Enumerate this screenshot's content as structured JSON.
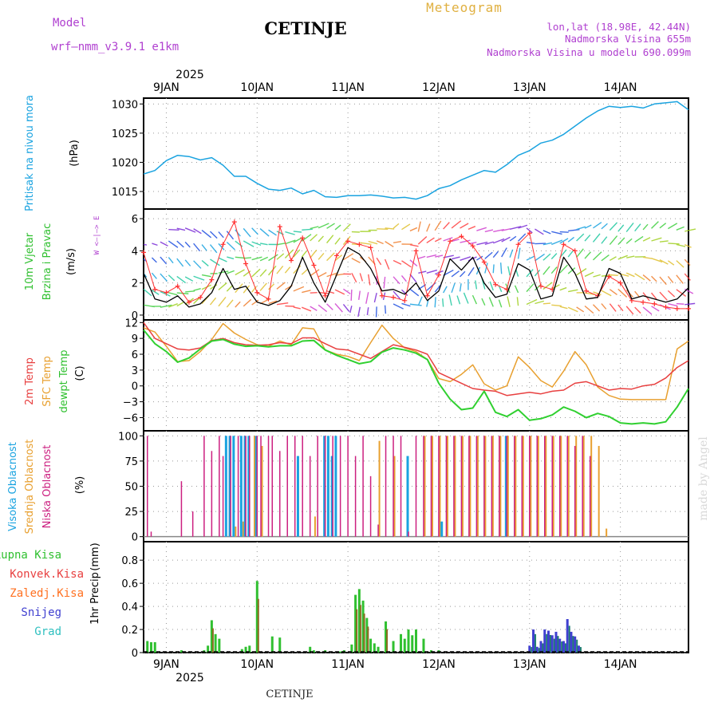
{
  "header": {
    "model_label": "Model",
    "model_name": "wrf—nmm_v3.9.1  e1km",
    "station_title": "CETINJE",
    "meteogram_label": "Meteogram",
    "lonlat": "lon,lat (18.98E, 42.44N)",
    "elevation": "Nadmorska Visina 655m",
    "model_elevation": "Nadmorska Visina u modelu 690.099m",
    "watermark": "made by Angel",
    "footer_station": "CETINJE"
  },
  "colors": {
    "pressure": "#1aa3e0",
    "wind_speed": "#000000",
    "gust": "#ff3030",
    "temp_2m": "#e84040",
    "temp_sfc": "#e8a030",
    "dewpoint": "#30d030",
    "cloud_high": "#1aa3e0",
    "cloud_mid": "#e8a030",
    "cloud_low": "#cc2080",
    "precip_total": "#30c030",
    "precip_conv": "#e84040",
    "precip_frozen": "#ff7020",
    "snow": "#4040d0",
    "hail": "#30c0c0",
    "purple_text": "#b040d0",
    "orange_text": "#e0b040"
  },
  "chart_data": [
    {
      "type": "line",
      "panel": "pressure",
      "title": "",
      "ylabel": "Pritisak na nivou mora",
      "unit": "(hPa)",
      "ylim": [
        1012,
        1031
      ],
      "yticks": [
        1015,
        1020,
        1025,
        1030
      ],
      "grid": true,
      "x_days": [
        "9JAN",
        "10JAN",
        "11JAN",
        "12JAN",
        "13JAN",
        "14JAN"
      ],
      "x_year": "2025",
      "xlim_hours": [
        -6,
        138
      ],
      "series": [
        {
          "name": "Pritisak na nivou mora",
          "x": [
            -6,
            -3,
            0,
            3,
            6,
            9,
            12,
            15,
            18,
            21,
            24,
            27,
            30,
            33,
            36,
            39,
            42,
            45,
            48,
            51,
            54,
            57,
            60,
            63,
            66,
            69,
            72,
            75,
            78,
            81,
            84,
            87,
            90,
            93,
            96,
            99,
            102,
            105,
            108,
            111,
            114,
            117,
            120,
            123,
            126,
            129,
            132,
            135,
            138
          ],
          "values": [
            1018,
            1018.6,
            1020.3,
            1021.2,
            1021.0,
            1020.4,
            1020.8,
            1019.5,
            1017.6,
            1017.6,
            1016.4,
            1015.4,
            1015.2,
            1015.6,
            1014.6,
            1015.2,
            1014.1,
            1014.0,
            1014.3,
            1014.3,
            1014.4,
            1014.2,
            1013.9,
            1014.0,
            1013.7,
            1014.3,
            1015.5,
            1016.0,
            1017.0,
            1017.8,
            1018.6,
            1018.3,
            1019.6,
            1021.2,
            1022.0,
            1023.3,
            1023.8,
            1024.8,
            1026.2,
            1027.6,
            1028.8,
            1029.6,
            1029.4,
            1029.6,
            1029.3,
            1030.0,
            1030.2,
            1030.4,
            1029.0
          ]
        }
      ]
    },
    {
      "type": "line",
      "panel": "wind",
      "ylabel": "10m Vjetar",
      "ylabel2": "Brzina i Pravac",
      "unit": "(m/s)",
      "compass": "W <—|—> E",
      "ylim": [
        -0.3,
        6.6
      ],
      "yticks": [
        0,
        2,
        4,
        6
      ],
      "grid": true,
      "series": [
        {
          "name": "speed",
          "x": [
            -6,
            -3,
            0,
            3,
            6,
            9,
            12,
            15,
            18,
            21,
            24,
            27,
            30,
            33,
            36,
            39,
            42,
            45,
            48,
            51,
            54,
            57,
            60,
            63,
            66,
            69,
            72,
            75,
            78,
            81,
            84,
            87,
            90,
            93,
            96,
            99,
            102,
            105,
            108,
            111,
            114,
            117,
            120,
            123,
            126,
            129,
            132,
            135,
            138
          ],
          "values": [
            2.6,
            1.0,
            0.8,
            1.2,
            0.5,
            0.7,
            1.4,
            2.9,
            1.6,
            1.8,
            0.8,
            0.6,
            0.9,
            1.8,
            3.6,
            2.0,
            0.8,
            2.5,
            4.2,
            3.8,
            2.9,
            1.5,
            1.6,
            1.3,
            2.0,
            0.9,
            1.5,
            3.5,
            2.8,
            3.6,
            2.0,
            1.1,
            1.3,
            3.2,
            2.8,
            1.0,
            1.2,
            3.6,
            2.6,
            1.0,
            1.1,
            2.9,
            2.6,
            1.0,
            1.2,
            1.0,
            0.8,
            1.0,
            1.7
          ]
        },
        {
          "name": "gust",
          "x": [
            -6,
            -3,
            0,
            3,
            6,
            9,
            12,
            15,
            18,
            21,
            24,
            27,
            30,
            33,
            36,
            39,
            42,
            45,
            48,
            51,
            54,
            57,
            60,
            63,
            66,
            69,
            72,
            75,
            78,
            81,
            84,
            87,
            90,
            93,
            96,
            99,
            102,
            105,
            108,
            111,
            114,
            117,
            120,
            123,
            126,
            129,
            132,
            135,
            138
          ],
          "values": [
            3.9,
            1.6,
            1.4,
            1.8,
            0.8,
            1.1,
            2.2,
            4.4,
            5.8,
            3.2,
            1.4,
            1.0,
            5.5,
            3.4,
            4.8,
            3.1,
            1.2,
            3.7,
            4.6,
            4.4,
            4.2,
            1.2,
            1.1,
            0.9,
            4.0,
            1.2,
            2.5,
            4.6,
            4.9,
            4.3,
            3.3,
            1.9,
            1.6,
            4.4,
            5.1,
            1.8,
            1.6,
            4.4,
            4.0,
            1.5,
            1.2,
            2.4,
            2.0,
            0.9,
            0.8,
            0.7,
            0.5,
            0.4,
            0.4
          ]
        }
      ]
    },
    {
      "type": "line",
      "panel": "temperature",
      "ylabel": "2m Temp",
      "ylabel2": "SFC Temp",
      "ylabel3": "dewpt Temp",
      "unit": "(C)",
      "ylim": [
        -8.5,
        12.5
      ],
      "yticks": [
        -6,
        -3,
        0,
        3,
        6,
        9,
        12
      ],
      "grid": true,
      "series": [
        {
          "name": "2m Temp",
          "x": [
            -6,
            -3,
            0,
            3,
            6,
            9,
            12,
            15,
            18,
            21,
            24,
            27,
            30,
            33,
            36,
            39,
            42,
            45,
            48,
            51,
            54,
            57,
            60,
            63,
            66,
            69,
            72,
            75,
            78,
            81,
            84,
            87,
            90,
            93,
            96,
            99,
            102,
            105,
            108,
            111,
            114,
            117,
            120,
            123,
            126,
            129,
            132,
            135,
            138
          ],
          "values": [
            12.0,
            9.0,
            8.0,
            7.0,
            6.8,
            7.2,
            8.6,
            9.0,
            8.2,
            7.8,
            7.7,
            7.8,
            8.2,
            8.0,
            9.1,
            9.1,
            8.0,
            7.0,
            6.8,
            6.0,
            5.2,
            6.5,
            7.8,
            7.3,
            6.8,
            6.0,
            2.5,
            1.5,
            0.5,
            -0.5,
            -0.8,
            -1.0,
            -1.8,
            -1.5,
            -1.2,
            -1.5,
            -1.0,
            -0.8,
            0.5,
            0.8,
            0.0,
            -0.8,
            -0.5,
            -0.6,
            0.0,
            0.3,
            1.5,
            3.5,
            4.8
          ]
        },
        {
          "name": "SFC Temp",
          "x": [
            -6,
            -3,
            0,
            3,
            6,
            9,
            12,
            15,
            18,
            21,
            24,
            27,
            30,
            33,
            36,
            39,
            42,
            45,
            48,
            51,
            54,
            57,
            60,
            63,
            66,
            69,
            72,
            75,
            78,
            81,
            84,
            87,
            90,
            93,
            96,
            99,
            102,
            105,
            108,
            111,
            114,
            117,
            120,
            123,
            126,
            129,
            132,
            135,
            138
          ],
          "values": [
            11.0,
            10.2,
            7.5,
            4.6,
            4.8,
            6.5,
            8.8,
            11.8,
            10.0,
            8.8,
            7.8,
            7.5,
            8.5,
            7.8,
            11.0,
            10.8,
            6.8,
            6.0,
            5.6,
            4.8,
            8.2,
            11.5,
            9.0,
            7.2,
            6.5,
            5.0,
            1.4,
            0.8,
            2.2,
            4.0,
            0.4,
            -0.8,
            0.0,
            5.5,
            3.5,
            1.0,
            -0.2,
            2.8,
            6.5,
            4.0,
            -0.2,
            -1.8,
            -2.5,
            -2.6,
            -2.6,
            -2.6,
            -2.6,
            7.0,
            8.5
          ]
        },
        {
          "name": "dewpt Temp",
          "x": [
            -6,
            -3,
            0,
            3,
            6,
            9,
            12,
            15,
            18,
            21,
            24,
            27,
            30,
            33,
            36,
            39,
            42,
            45,
            48,
            51,
            54,
            57,
            60,
            63,
            66,
            69,
            72,
            75,
            78,
            81,
            84,
            87,
            90,
            93,
            96,
            99,
            102,
            105,
            108,
            111,
            114,
            117,
            120,
            123,
            126,
            129,
            132,
            135,
            138
          ],
          "values": [
            10.6,
            8.0,
            6.5,
            4.5,
            5.3,
            7.0,
            8.5,
            8.8,
            7.9,
            7.5,
            7.6,
            7.4,
            7.6,
            7.6,
            8.5,
            8.6,
            6.8,
            5.8,
            5.0,
            4.2,
            4.6,
            6.4,
            7.2,
            6.8,
            6.2,
            5.0,
            0.5,
            -2.5,
            -4.5,
            -4.2,
            -1.0,
            -5.0,
            -5.8,
            -4.5,
            -6.5,
            -6.2,
            -5.5,
            -4.0,
            -4.8,
            -6.0,
            -5.2,
            -5.8,
            -7.0,
            -7.2,
            -7.0,
            -7.2,
            -6.8,
            -4.0,
            -0.5
          ]
        }
      ]
    },
    {
      "type": "bar",
      "panel": "clouds",
      "ylabel": "Visoka Oblacnost",
      "ylabel2": "Srednja Oblacnost",
      "ylabel3": "Niska Oblacnost",
      "unit": "(%)",
      "ylim": [
        -5,
        105
      ],
      "yticks": [
        0,
        25,
        50,
        75,
        100
      ],
      "grid": true,
      "series": [
        {
          "name": "Niska Oblacnost",
          "x": [
            -5,
            -4,
            4,
            7,
            10,
            12,
            14,
            15,
            17,
            19,
            21,
            22,
            24,
            25,
            27,
            28,
            30,
            32,
            34,
            36,
            38,
            40,
            42,
            44,
            46,
            48,
            50,
            52,
            54,
            56,
            58,
            60,
            62,
            64,
            66,
            68,
            70,
            72,
            74,
            76,
            78,
            80,
            82,
            84,
            86,
            88,
            90,
            92,
            94,
            96,
            98,
            100,
            102,
            104,
            106,
            108,
            110,
            112
          ],
          "values": [
            100,
            5,
            55,
            25,
            100,
            85,
            100,
            80,
            100,
            100,
            100,
            100,
            100,
            100,
            100,
            100,
            85,
            100,
            100,
            100,
            80,
            100,
            100,
            100,
            100,
            100,
            80,
            100,
            60,
            12,
            100,
            100,
            100,
            5,
            100,
            100,
            100,
            100,
            100,
            100,
            100,
            100,
            100,
            100,
            100,
            100,
            100,
            100,
            100,
            100,
            100,
            100,
            100,
            100,
            100,
            90,
            100,
            80
          ]
        },
        {
          "name": "Srednja Oblacnost",
          "x": [
            18,
            20,
            23,
            25,
            39,
            56,
            60,
            68,
            70,
            72,
            74,
            76,
            78,
            80,
            82,
            84,
            86,
            88,
            90,
            92,
            94,
            96,
            98,
            100,
            102,
            104,
            106,
            108,
            110,
            112,
            114,
            116
          ],
          "values": [
            10,
            15,
            100,
            90,
            20,
            95,
            80,
            100,
            100,
            100,
            100,
            100,
            100,
            100,
            100,
            100,
            100,
            100,
            100,
            100,
            100,
            100,
            100,
            100,
            100,
            100,
            100,
            100,
            100,
            100,
            90,
            8
          ]
        },
        {
          "name": "Visoka Oblacnost",
          "x": [
            16,
            17,
            18,
            20,
            21,
            22,
            24,
            35,
            42,
            43,
            44,
            45,
            64,
            73,
            90
          ],
          "values": [
            100,
            100,
            100,
            100,
            100,
            100,
            100,
            80,
            100,
            100,
            80,
            100,
            80,
            15,
            100
          ]
        }
      ]
    },
    {
      "type": "bar",
      "panel": "precipitation",
      "ylabel": "1hr Precip",
      "unit": "(mm)",
      "legend": [
        "Ukupna Kisa",
        "Konvek.Kisa",
        "Zaledj.Kisa",
        "Snijeg",
        "Grad"
      ],
      "ylim": [
        0,
        0.96
      ],
      "yticks": [
        0,
        0.2,
        0.4,
        0.6,
        0.8
      ],
      "grid": true,
      "series": [
        {
          "name": "Ukupna Kisa",
          "x": [
            -5,
            -4,
            -3,
            4,
            10,
            11,
            12,
            13,
            14,
            20,
            21,
            22,
            24,
            28,
            30,
            38,
            39,
            42,
            46,
            47,
            49,
            50,
            51,
            52,
            53,
            54,
            55,
            56,
            58,
            60,
            62,
            63,
            64,
            65,
            66,
            68,
            70,
            72
          ],
          "values": [
            0.1,
            0.09,
            0.09,
            0.02,
            0.02,
            0.06,
            0.28,
            0.16,
            0.12,
            0.03,
            0.05,
            0.06,
            0.62,
            0.14,
            0.13,
            0.05,
            0.02,
            0.02,
            0.01,
            0.02,
            0.07,
            0.5,
            0.55,
            0.45,
            0.3,
            0.12,
            0.08,
            0.05,
            0.27,
            0.1,
            0.16,
            0.12,
            0.2,
            0.15,
            0.2,
            0.12,
            0.02,
            0.02
          ]
        },
        {
          "name": "Snijeg",
          "x": [
            96,
            97,
            98,
            99,
            100,
            101,
            102,
            103,
            104,
            105,
            106,
            107,
            108,
            109
          ],
          "values": [
            0.06,
            0.2,
            0.05,
            0.1,
            0.2,
            0.19,
            0.15,
            0.18,
            0.12,
            0.1,
            0.29,
            0.18,
            0.14,
            0.06
          ]
        }
      ]
    }
  ]
}
